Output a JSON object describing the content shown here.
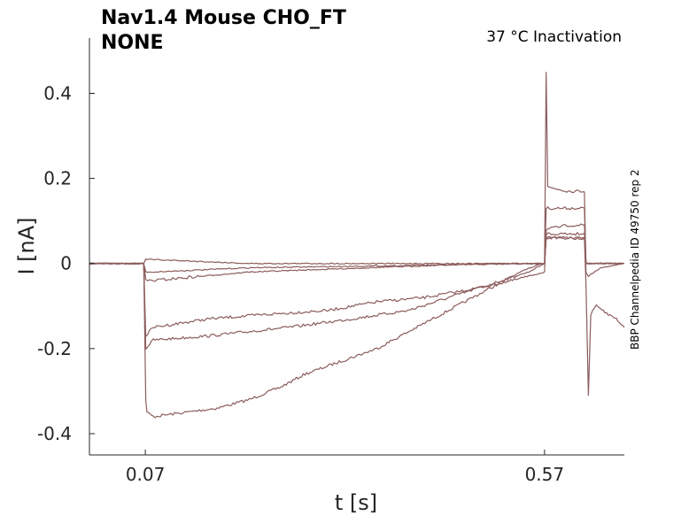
{
  "chart_data": {
    "type": "line",
    "title_line1": "Nav1.4  Mouse  CHO_FT",
    "title_line2": "NONE",
    "condition": "37 °C  Inactivation",
    "side_label": "BBP Channelpedia ID 49750 rep 2",
    "xlabel": "t [s]",
    "ylabel": "I [nA]",
    "xlim": [
      0.0,
      0.67
    ],
    "ylim": [
      -0.45,
      0.53
    ],
    "x_ticks": [
      0.07,
      0.57
    ],
    "x_tick_labels": [
      "0.07",
      "0.57"
    ],
    "y_ticks": [
      -0.4,
      -0.2,
      0,
      0.2,
      0.4
    ],
    "y_tick_labels": [
      "-0.4",
      "-0.2",
      "0",
      "0.2",
      "0.4"
    ],
    "grid": false,
    "legend": "none",
    "trace_color": "#8c5c5c",
    "series": [
      {
        "points": [
          [
            0.0,
            0.0
          ],
          [
            0.068,
            0.0
          ],
          [
            0.0705,
            -0.32
          ],
          [
            0.072,
            -0.35
          ],
          [
            0.08,
            -0.36
          ],
          [
            0.12,
            -0.35
          ],
          [
            0.16,
            -0.34
          ],
          [
            0.2,
            -0.32
          ],
          [
            0.24,
            -0.29
          ],
          [
            0.27,
            -0.26
          ],
          [
            0.3,
            -0.24
          ],
          [
            0.33,
            -0.22
          ],
          [
            0.36,
            -0.2
          ],
          [
            0.39,
            -0.17
          ],
          [
            0.42,
            -0.14
          ],
          [
            0.45,
            -0.11
          ],
          [
            0.48,
            -0.08
          ],
          [
            0.51,
            -0.05
          ],
          [
            0.54,
            -0.02
          ],
          [
            0.565,
            0.0
          ],
          [
            0.57,
            0.0
          ],
          [
            0.572,
            0.45
          ],
          [
            0.574,
            0.18
          ],
          [
            0.6,
            0.17
          ],
          [
            0.62,
            0.17
          ],
          [
            0.622,
            -0.02
          ],
          [
            0.625,
            -0.03
          ],
          [
            0.64,
            -0.01
          ],
          [
            0.67,
            0.0
          ]
        ]
      },
      {
        "points": [
          [
            0.0,
            0.0
          ],
          [
            0.068,
            0.0
          ],
          [
            0.0705,
            -0.2
          ],
          [
            0.08,
            -0.18
          ],
          [
            0.15,
            -0.17
          ],
          [
            0.25,
            -0.15
          ],
          [
            0.33,
            -0.13
          ],
          [
            0.4,
            -0.11
          ],
          [
            0.45,
            -0.08
          ],
          [
            0.5,
            -0.05
          ],
          [
            0.55,
            -0.02
          ],
          [
            0.57,
            0.0
          ],
          [
            0.572,
            0.13
          ],
          [
            0.6,
            0.13
          ],
          [
            0.62,
            0.13
          ],
          [
            0.622,
            0.0
          ],
          [
            0.67,
            0.0
          ]
        ]
      },
      {
        "points": [
          [
            0.0,
            0.0
          ],
          [
            0.068,
            0.0
          ],
          [
            0.0705,
            -0.17
          ],
          [
            0.08,
            -0.15
          ],
          [
            0.15,
            -0.13
          ],
          [
            0.22,
            -0.12
          ],
          [
            0.3,
            -0.11
          ],
          [
            0.36,
            -0.09
          ],
          [
            0.42,
            -0.08
          ],
          [
            0.48,
            -0.06
          ],
          [
            0.53,
            -0.04
          ],
          [
            0.57,
            -0.02
          ],
          [
            0.572,
            0.08
          ],
          [
            0.6,
            0.09
          ],
          [
            0.62,
            0.09
          ],
          [
            0.622,
            0.0
          ],
          [
            0.67,
            0.0
          ]
        ]
      },
      {
        "points": [
          [
            0.0,
            0.0
          ],
          [
            0.068,
            0.0
          ],
          [
            0.0705,
            -0.04
          ],
          [
            0.08,
            -0.04
          ],
          [
            0.2,
            -0.02
          ],
          [
            0.35,
            -0.01
          ],
          [
            0.5,
            0.0
          ],
          [
            0.57,
            0.0
          ],
          [
            0.572,
            0.07
          ],
          [
            0.6,
            0.07
          ],
          [
            0.62,
            0.07
          ],
          [
            0.622,
            0.0
          ],
          [
            0.67,
            0.0
          ]
        ]
      },
      {
        "points": [
          [
            0.0,
            0.0
          ],
          [
            0.068,
            0.0
          ],
          [
            0.0705,
            -0.02
          ],
          [
            0.08,
            -0.02
          ],
          [
            0.2,
            -0.01
          ],
          [
            0.57,
            0.0
          ],
          [
            0.572,
            0.06
          ],
          [
            0.6,
            0.06
          ],
          [
            0.62,
            0.06
          ],
          [
            0.622,
            0.0
          ],
          [
            0.67,
            0.0
          ]
        ]
      },
      {
        "points": [
          [
            0.0,
            0.0
          ],
          [
            0.068,
            0.0
          ],
          [
            0.0705,
            0.01
          ],
          [
            0.2,
            0.0
          ],
          [
            0.57,
            0.0
          ],
          [
            0.572,
            0.06
          ],
          [
            0.62,
            0.06
          ],
          [
            0.622,
            -0.05
          ],
          [
            0.625,
            -0.31
          ],
          [
            0.628,
            -0.12
          ],
          [
            0.635,
            -0.1
          ],
          [
            0.65,
            -0.12
          ],
          [
            0.66,
            -0.13
          ],
          [
            0.67,
            -0.15
          ]
        ]
      }
    ]
  }
}
